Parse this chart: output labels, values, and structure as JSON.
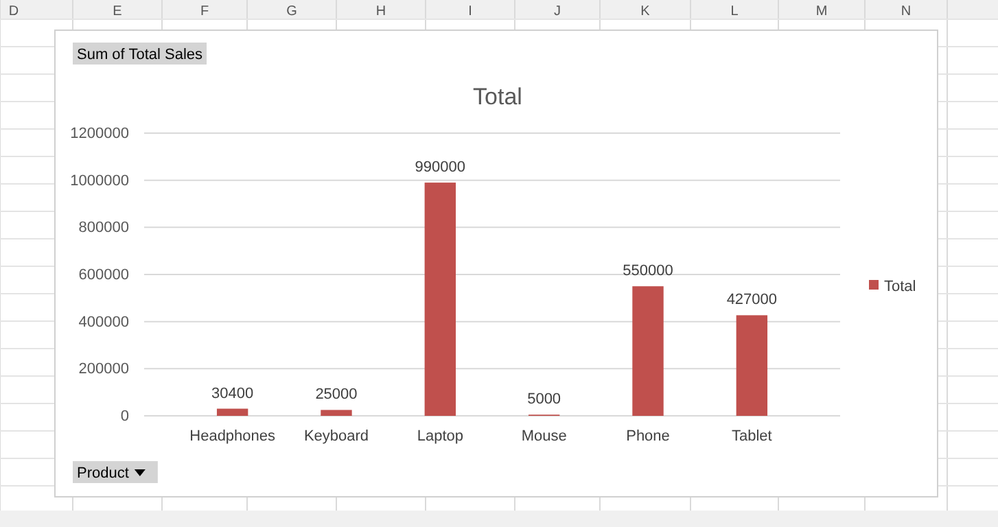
{
  "chart_data": {
    "type": "bar",
    "title": "Total",
    "categories": [
      "Headphones",
      "Keyboard",
      "Laptop",
      "Mouse",
      "Phone",
      "Tablet"
    ],
    "series": [
      {
        "name": "Total",
        "color": "#c0504d",
        "values": [
          30400,
          25000,
          990000,
          5000,
          550000,
          427000
        ]
      }
    ],
    "ylim": [
      0,
      1200000
    ],
    "yticks": [
      0,
      200000,
      400000,
      600000,
      800000,
      1000000,
      1200000
    ],
    "grid": "y",
    "legend": "right",
    "data_labels": true,
    "annotations": [
      "Sum of Total Sales",
      "Product",
      "D",
      "E",
      "F",
      "G",
      "H",
      "I",
      "J",
      "K",
      "L",
      "M",
      "N"
    ]
  }
}
